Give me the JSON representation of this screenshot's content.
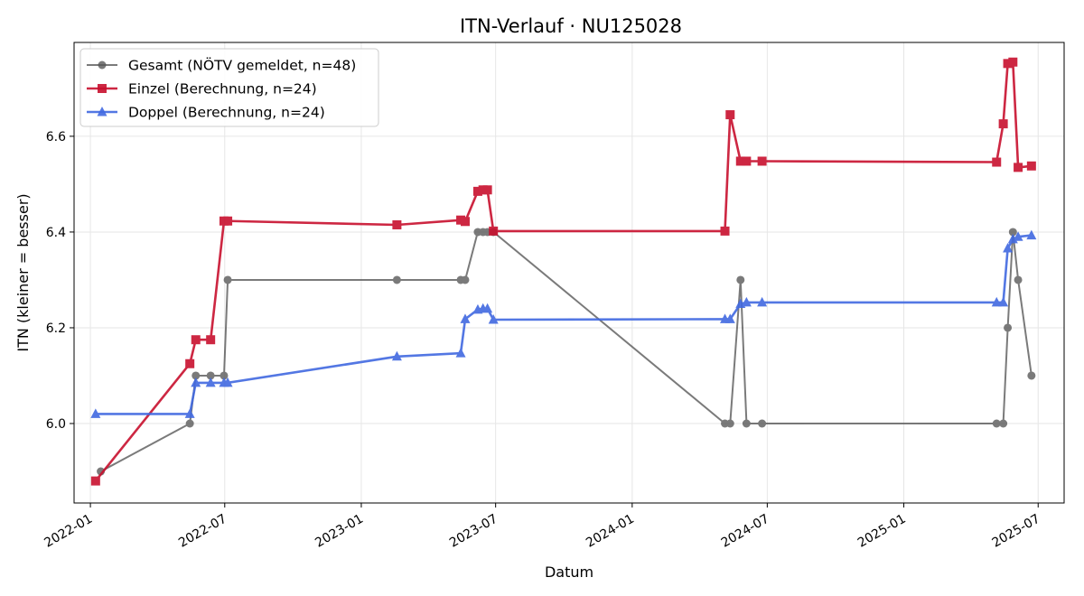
{
  "chart_data": {
    "type": "line",
    "title": "ITN-Verlauf · NU125028",
    "xlabel": "Datum",
    "ylabel": "ITN  (kleiner = besser)",
    "x_axis": {
      "type": "date",
      "range": [
        "2021-12-10",
        "2025-08-05"
      ],
      "ticks": [
        "2022-01-01",
        "2022-07-01",
        "2023-01-01",
        "2023-07-01",
        "2024-01-01",
        "2024-07-01",
        "2025-01-01",
        "2025-07-01"
      ],
      "tick_labels": [
        "2022-01",
        "2022-07",
        "2023-01",
        "2023-07",
        "2024-01",
        "2024-07",
        "2025-01",
        "2025-07"
      ]
    },
    "ylim": [
      5.834,
      6.796
    ],
    "yticks": [
      6.0,
      6.2,
      6.4,
      6.6
    ],
    "ytick_labels": [
      "6.0",
      "6.2",
      "6.4",
      "6.6"
    ],
    "grid": true,
    "legend_position": "top-left",
    "series": [
      {
        "name": "Gesamt (NÖTV gemeldet, n=48)",
        "color": "#555555",
        "marker": "circle",
        "points": [
          [
            "2022-01-15",
            5.9
          ],
          [
            "2022-05-15",
            6.0
          ],
          [
            "2022-05-23",
            6.1
          ],
          [
            "2022-06-12",
            6.1
          ],
          [
            "2022-06-30",
            6.1
          ],
          [
            "2022-07-05",
            6.3
          ],
          [
            "2023-02-18",
            6.3
          ],
          [
            "2023-05-15",
            6.3
          ],
          [
            "2023-05-21",
            6.3
          ],
          [
            "2023-06-07",
            6.4
          ],
          [
            "2023-06-14",
            6.4
          ],
          [
            "2023-06-20",
            6.4
          ],
          [
            "2023-06-28",
            6.4
          ],
          [
            "2024-05-05",
            6.0
          ],
          [
            "2024-05-12",
            6.0
          ],
          [
            "2024-05-26",
            6.3
          ],
          [
            "2024-06-03",
            6.0
          ],
          [
            "2024-06-24",
            6.0
          ],
          [
            "2025-05-06",
            6.0
          ],
          [
            "2025-05-15",
            6.0
          ],
          [
            "2025-05-21",
            6.2
          ],
          [
            "2025-05-28",
            6.4
          ],
          [
            "2025-06-04",
            6.3
          ],
          [
            "2025-06-22",
            6.1
          ]
        ]
      },
      {
        "name": "Einzel (Berechnung, n=24)",
        "color": "#c8102e",
        "marker": "square",
        "points": [
          [
            "2022-01-08",
            5.88
          ],
          [
            "2022-05-15",
            6.125
          ],
          [
            "2022-05-23",
            6.175
          ],
          [
            "2022-06-12",
            6.175
          ],
          [
            "2022-06-30",
            6.423
          ],
          [
            "2022-07-05",
            6.423
          ],
          [
            "2023-02-18",
            6.415
          ],
          [
            "2023-05-15",
            6.425
          ],
          [
            "2023-05-21",
            6.422
          ],
          [
            "2023-06-07",
            6.485
          ],
          [
            "2023-06-14",
            6.488
          ],
          [
            "2023-06-20",
            6.488
          ],
          [
            "2023-06-28",
            6.402
          ],
          [
            "2024-05-05",
            6.402
          ],
          [
            "2024-05-12",
            6.645
          ],
          [
            "2024-05-26",
            6.548
          ],
          [
            "2024-06-03",
            6.548
          ],
          [
            "2024-06-24",
            6.548
          ],
          [
            "2025-05-06",
            6.546
          ],
          [
            "2025-05-15",
            6.626
          ],
          [
            "2025-05-21",
            6.752
          ],
          [
            "2025-05-28",
            6.755
          ],
          [
            "2025-06-04",
            6.535
          ],
          [
            "2025-06-22",
            6.538
          ]
        ]
      },
      {
        "name": "Doppel (Berechnung, n=24)",
        "color": "#4169e1",
        "marker": "triangle",
        "points": [
          [
            "2022-01-08",
            6.02
          ],
          [
            "2022-05-15",
            6.02
          ],
          [
            "2022-05-23",
            6.085
          ],
          [
            "2022-06-12",
            6.085
          ],
          [
            "2022-06-30",
            6.085
          ],
          [
            "2022-07-05",
            6.085
          ],
          [
            "2023-02-18",
            6.14
          ],
          [
            "2023-05-15",
            6.147
          ],
          [
            "2023-05-21",
            6.218
          ],
          [
            "2023-06-07",
            6.238
          ],
          [
            "2023-06-14",
            6.24
          ],
          [
            "2023-06-20",
            6.24
          ],
          [
            "2023-06-28",
            6.217
          ],
          [
            "2024-05-05",
            6.218
          ],
          [
            "2024-05-12",
            6.218
          ],
          [
            "2024-05-26",
            6.25
          ],
          [
            "2024-06-03",
            6.253
          ],
          [
            "2024-06-24",
            6.253
          ],
          [
            "2025-05-06",
            6.253
          ],
          [
            "2025-05-15",
            6.253
          ],
          [
            "2025-05-21",
            6.366
          ],
          [
            "2025-05-28",
            6.385
          ],
          [
            "2025-06-04",
            6.39
          ],
          [
            "2025-06-22",
            6.393
          ]
        ]
      }
    ]
  }
}
